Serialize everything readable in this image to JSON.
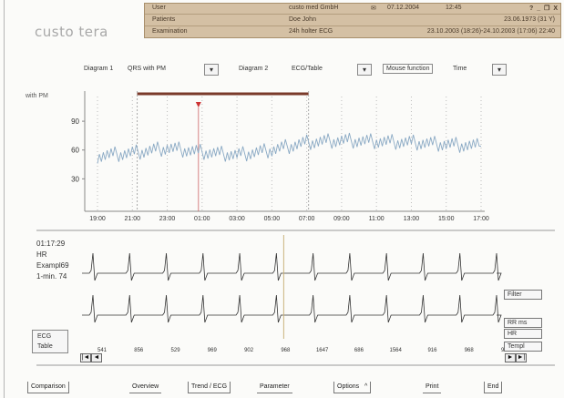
{
  "app": {
    "logo": "custo tera"
  },
  "header": {
    "user_label": "User",
    "user_value": "custo med GmbH",
    "date": "07.12.2004",
    "time": "12:45",
    "window_buttons": "? _ ❐ X",
    "patient_label": "Patients",
    "patient_value": "Doe John",
    "patient_birth": "23.06.1973 (31 Y)",
    "exam_label": "Examination",
    "exam_value": "24h holter ECG",
    "exam_range": "23.10.2003 (18:26)-24.10.2003 (17:06) 22:40"
  },
  "toolbar": {
    "diagram1_label": "Diagram 1",
    "diagram1_value": "QRS with PM",
    "diagram2_label": "Diagram 2",
    "diagram2_value": "ECG/Table",
    "mouse_function": "Mouse function",
    "time_label": "Time"
  },
  "chart_data": {
    "type": "line",
    "title": "",
    "ylabel": "with PM",
    "xlabel": "",
    "yticks": [
      "90",
      "60",
      "30"
    ],
    "ylim": [
      0,
      110
    ],
    "grid": true,
    "categories": [
      "19:00",
      "21:00",
      "23:00",
      "01:00",
      "03:00",
      "05:00",
      "07:00",
      "09:00",
      "11:00",
      "13:00",
      "15:00",
      "17:00"
    ],
    "series": [
      {
        "values": [
          54,
          57,
          62,
          58,
          55,
          60,
          68,
          70,
          69,
          68,
          66,
          64
        ]
      }
    ]
  },
  "ecg": {
    "time": "01:17:29",
    "hr": "HR",
    "example": "Exampl69",
    "rate": "1-min. 74",
    "beat_values": [
      "541",
      "856",
      "529",
      "969",
      "902",
      "968",
      "1647",
      "686",
      "1564",
      "916",
      "968",
      "928"
    ]
  },
  "ecg_table_button": "ECG\nTable",
  "right_buttons": {
    "filter": "Filter",
    "rr": "RR ms",
    "hr": "HR",
    "templ": "Templ"
  },
  "nav": {
    "first": "|◄",
    "prev": "◄",
    "next": "►",
    "last": "►|"
  },
  "bottom_bar": {
    "comparison": "Comparison",
    "overview": "Overview",
    "trend_ecg": "Trend / ECG",
    "parameter": "Parameter",
    "options": "Options",
    "print": "Print",
    "end": "End"
  }
}
